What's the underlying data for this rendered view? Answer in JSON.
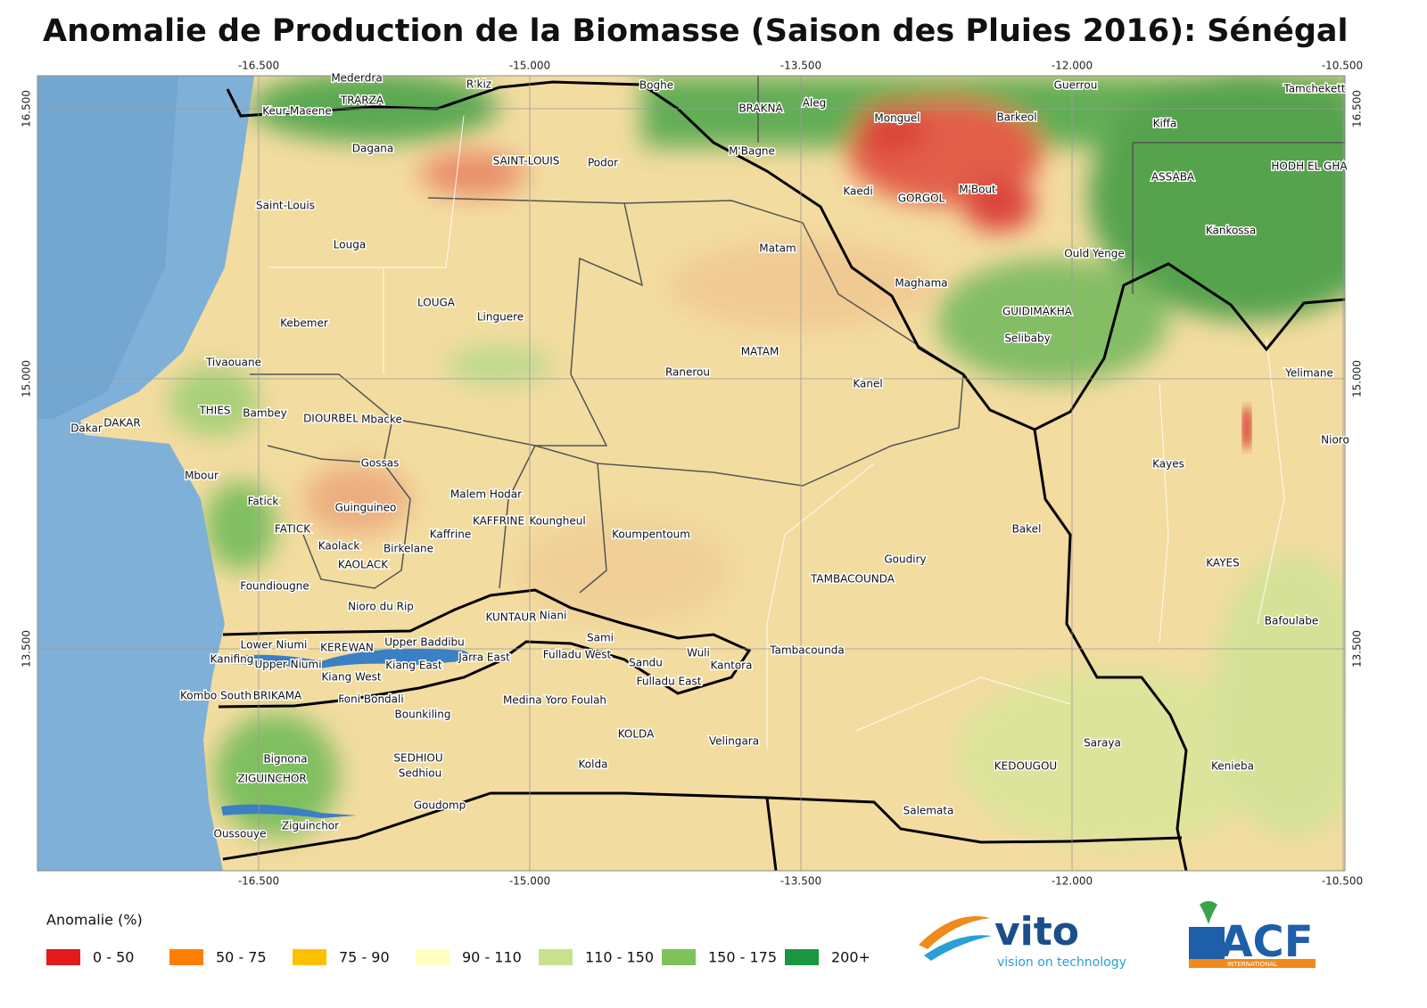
{
  "title": "Anomalie de Production de la Biomasse (Saison des Pluies 2016): Sénégal",
  "map": {
    "lon_ticks": [
      {
        "value": -16.5,
        "label": "-16.500"
      },
      {
        "value": -15,
        "label": "-15.000"
      },
      {
        "value": -13.5,
        "label": "-13.500"
      },
      {
        "value": -12,
        "label": "-12.000"
      },
      {
        "value": -10.5,
        "label": "-10.500"
      }
    ],
    "lat_ticks": [
      {
        "value": 16.5,
        "label": "16.500"
      },
      {
        "value": 15,
        "label": "15.000"
      },
      {
        "value": 13.5,
        "label": "13.500"
      }
    ],
    "places": [
      "Mederdra",
      "R'kiz",
      "Boghe",
      "Guerrou",
      "Tamchekett",
      "Keur-Macene",
      "TRARZA",
      "BRAKNA",
      "Aleg",
      "Monguel",
      "Barkeol",
      "Kiffa",
      "Dagana",
      "M'Bagne",
      "SAINT-LOUIS",
      "Podor",
      "HODH EL GHA",
      "ASSABA",
      "Kaedi",
      "GORGOL",
      "M'Bout",
      "Saint-Louis",
      "Kankossa",
      "Louga",
      "Matam",
      "Ould Yenge",
      "Maghama",
      "LOUGA",
      "Linguere",
      "GUIDIMAKHA",
      "Kebemer",
      "Selibaby",
      "MATAM",
      "Tivaouane",
      "Ranerou",
      "Yelimane",
      "Kanel",
      "THIES",
      "Bambey",
      "DIOURBEL",
      "Mbacke",
      "DAKAR",
      "Dakar",
      "Nioro",
      "Kayes",
      "Gossas",
      "Mbour",
      "Malem Hodar",
      "Fatick",
      "Guinguineo",
      "KAFFRINE",
      "Koungheul",
      "FATICK",
      "Kaffrine",
      "Koumpentoum",
      "Bakel",
      "Kaolack",
      "Birkelane",
      "Goudiry",
      "KAYES",
      "KAOLACK",
      "TAMBACOUNDA",
      "Foundiougne",
      "Nioro du Rip",
      "KUNTAUR",
      "Niani",
      "Bafoulabe",
      "Sami",
      "Upper Baddibu",
      "Lower Niumi",
      "KEREWAN",
      "Tambacounda",
      "Jarra East",
      "Fulladu West",
      "Wuli",
      "Kanifing",
      "Upper Niumi",
      "Kiang East",
      "Sandu",
      "Kantora",
      "Kiang West",
      "Fulladu East",
      "Kombo South",
      "BRIKAMA",
      "Foni Bondali",
      "Medina Yoro Foulah",
      "Bounkiling",
      "KOLDA",
      "Velingara",
      "Saraya",
      "Bignona",
      "SEDHIOU",
      "Kolda",
      "KEDOUGOU",
      "Kenieba",
      "Sedhiou",
      "ZIGUINCHOR",
      "Goudomp",
      "Salemata",
      "Ziguinchor",
      "Oussouye"
    ]
  },
  "legend": {
    "title": "Anomalie (%)",
    "items": [
      {
        "label": "0 - 50",
        "color": "#e31a1c"
      },
      {
        "label": "50 - 75",
        "color": "#ff7f00"
      },
      {
        "label": "75 - 90",
        "color": "#ffc000"
      },
      {
        "label": "90 - 110",
        "color": "#ffffc0"
      },
      {
        "label": "110 - 150",
        "color": "#c6e28c"
      },
      {
        "label": "150 - 175",
        "color": "#7cc35a"
      },
      {
        "label": "200+",
        "color": "#1a9641"
      }
    ]
  },
  "logos": {
    "vito": "vito",
    "vito_tagline": "vision on technology",
    "acf": "ACF",
    "acf_sub": "INTERNATIONAL"
  }
}
